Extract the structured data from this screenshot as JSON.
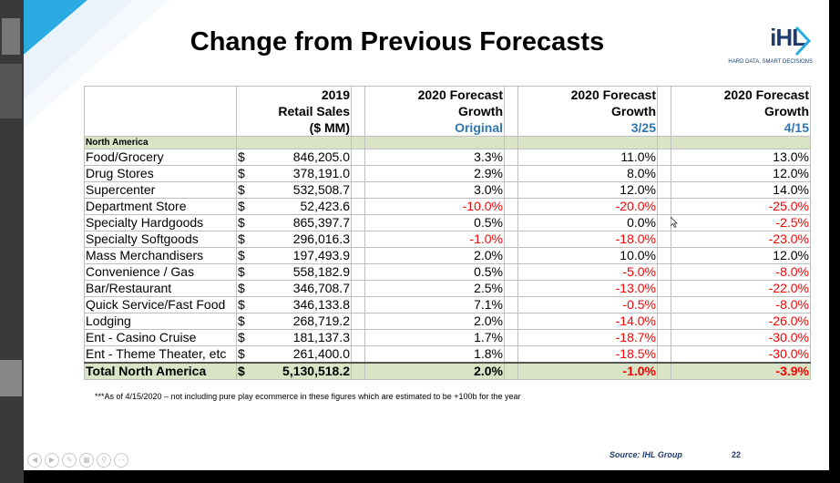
{
  "slide": {
    "title": "Change from Previous Forecasts",
    "logo": {
      "mark": "iHL",
      "tagline": "HARD DATA, SMART DECISIONS"
    },
    "footnote": "***As of 4/15/2020 – not including pure play ecommerce in these figures which are estimated to be +100b for the year",
    "source": "Source: IHL Group",
    "page_number": "22",
    "colors": {
      "negative": "#ff0000",
      "header_blue": "#2e75b6",
      "section_fill": "#d9e4c6",
      "brand": "#1f3b6e"
    }
  },
  "table": {
    "headers": {
      "sales": [
        "2019",
        "Retail Sales",
        "($ MM)"
      ],
      "original": [
        "2020 Forecast",
        "Growth",
        "Original"
      ],
      "mar25": [
        "2020 Forecast",
        "Growth",
        "3/25"
      ],
      "apr15": [
        "2020 Forecast",
        "Growth",
        "4/15"
      ]
    },
    "section": "North America",
    "rows": [
      {
        "name": "Food/Grocery",
        "cur": "$",
        "sales": "846,205.0",
        "original": "3.3%",
        "mar25": "11.0%",
        "apr15": "13.0%"
      },
      {
        "name": "Drug Stores",
        "cur": "$",
        "sales": "378,191.0",
        "original": "2.9%",
        "mar25": "8.0%",
        "apr15": "12.0%"
      },
      {
        "name": "Supercenter",
        "cur": "$",
        "sales": "532,508.7",
        "original": "3.0%",
        "mar25": "12.0%",
        "apr15": "14.0%"
      },
      {
        "name": "Department Store",
        "cur": "$",
        "sales": "52,423.6",
        "original": "-10.0%",
        "mar25": "-20.0%",
        "apr15": "-25.0%"
      },
      {
        "name": "Specialty Hardgoods",
        "cur": "$",
        "sales": "865,397.7",
        "original": "0.5%",
        "mar25": "0.0%",
        "apr15": "-2.5%"
      },
      {
        "name": "Specialty Softgoods",
        "cur": "$",
        "sales": "296,016.3",
        "original": "-1.0%",
        "mar25": "-18.0%",
        "apr15": "-23.0%"
      },
      {
        "name": "Mass Merchandisers",
        "cur": "$",
        "sales": "197,493.9",
        "original": "2.0%",
        "mar25": "10.0%",
        "apr15": "12.0%"
      },
      {
        "name": "Convenience / Gas",
        "cur": "$",
        "sales": "558,182.9",
        "original": "0.5%",
        "mar25": "-5.0%",
        "apr15": "-8.0%"
      },
      {
        "name": "Bar/Restaurant",
        "cur": "$",
        "sales": "346,708.7",
        "original": "2.5%",
        "mar25": "-13.0%",
        "apr15": "-22.0%"
      },
      {
        "name": "Quick Service/Fast Food",
        "cur": "$",
        "sales": "346,133.8",
        "original": "7.1%",
        "mar25": "-0.5%",
        "apr15": "-8.0%"
      },
      {
        "name": "Lodging",
        "cur": "$",
        "sales": "268,719.2",
        "original": "2.0%",
        "mar25": "-14.0%",
        "apr15": "-26.0%"
      },
      {
        "name": "Ent - Casino Cruise",
        "cur": "$",
        "sales": "181,137.3",
        "original": "1.7%",
        "mar25": "-18.7%",
        "apr15": "-30.0%"
      },
      {
        "name": "Ent - Theme Theater, etc",
        "cur": "$",
        "sales": "261,400.0",
        "original": "1.8%",
        "mar25": "-18.5%",
        "apr15": "-30.0%"
      }
    ],
    "total": {
      "name": "Total North America",
      "cur": "$",
      "sales": "5,130,518.2",
      "original": "2.0%",
      "mar25": "-1.0%",
      "apr15": "-3.9%"
    }
  }
}
